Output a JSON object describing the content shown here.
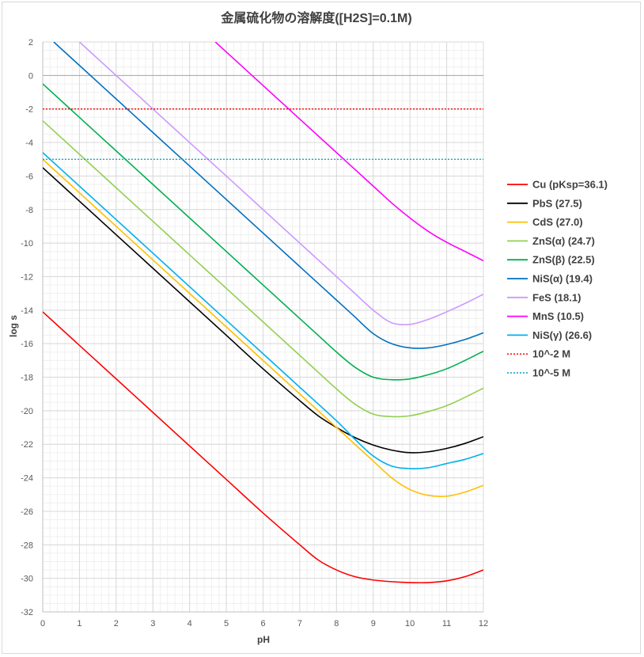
{
  "chart_data": {
    "type": "line",
    "title": "金属硫化物の溶解度([H2S]=0.1M)",
    "xlabel": "pH",
    "ylabel": "log s",
    "xlim": [
      0,
      12
    ],
    "ylim": [
      -32,
      2
    ],
    "x_ticks": [
      0,
      1,
      2,
      3,
      4,
      5,
      6,
      7,
      8,
      9,
      10,
      11,
      12
    ],
    "y_ticks": [
      2,
      0,
      -2,
      -4,
      -6,
      -8,
      -10,
      -12,
      -14,
      -16,
      -18,
      -20,
      -22,
      -24,
      -26,
      -28,
      -30,
      -32
    ],
    "x_minor_step": 0.2,
    "y_minor_step": 0.5,
    "legend_position": "right",
    "series": [
      {
        "name": "Cu (pKsp=36.1)",
        "color": "#ff0000",
        "style": "solid",
        "x": [
          0,
          1,
          2,
          3,
          4,
          5,
          6,
          7,
          7.5,
          8,
          8.5,
          9,
          9.5,
          10,
          10.5,
          11,
          11.5,
          12
        ],
        "y": [
          -14.1,
          -16.1,
          -18.1,
          -20.1,
          -22.1,
          -24.1,
          -26.1,
          -28.0,
          -28.9,
          -29.5,
          -29.9,
          -30.1,
          -30.2,
          -30.25,
          -30.25,
          -30.15,
          -29.9,
          -29.5
        ]
      },
      {
        "name": "PbS (27.5)",
        "color": "#000000",
        "style": "solid",
        "x": [
          0,
          1,
          2,
          3,
          4,
          5,
          6,
          7,
          7.5,
          8,
          8.5,
          9,
          9.5,
          10,
          10.5,
          11,
          11.5,
          12
        ],
        "y": [
          -5.5,
          -7.5,
          -9.5,
          -11.5,
          -13.5,
          -15.5,
          -17.5,
          -19.4,
          -20.3,
          -21.0,
          -21.6,
          -22.05,
          -22.35,
          -22.5,
          -22.45,
          -22.25,
          -21.95,
          -21.55
        ]
      },
      {
        "name": "CdS (27.0)",
        "color": "#ffc000",
        "style": "solid",
        "x": [
          0,
          1,
          2,
          3,
          4,
          5,
          6,
          7,
          8,
          8.5,
          9,
          9.5,
          10,
          10.5,
          11,
          11.5,
          12
        ],
        "y": [
          -5.0,
          -7.0,
          -9.0,
          -11.0,
          -13.0,
          -15.0,
          -17.0,
          -19.0,
          -21.0,
          -22.0,
          -23.0,
          -24.0,
          -24.7,
          -25.05,
          -25.1,
          -24.85,
          -24.45
        ]
      },
      {
        "name": "ZnS(α) (24.7)",
        "color": "#92d050",
        "style": "solid",
        "x": [
          0,
          1,
          2,
          3,
          4,
          5,
          6,
          7,
          7.5,
          8,
          8.5,
          9,
          9.5,
          10,
          10.5,
          11,
          11.5,
          12
        ],
        "y": [
          -2.7,
          -4.7,
          -6.7,
          -8.7,
          -10.7,
          -12.7,
          -14.7,
          -16.7,
          -17.7,
          -18.7,
          -19.6,
          -20.2,
          -20.35,
          -20.3,
          -20.05,
          -19.7,
          -19.2,
          -18.65
        ]
      },
      {
        "name": "ZnS(β) (22.5)",
        "color": "#00b050",
        "style": "solid",
        "x": [
          0,
          1,
          2,
          3,
          4,
          5,
          6,
          7,
          7.5,
          8,
          8.5,
          9,
          9.5,
          10,
          10.5,
          11,
          11.5,
          12
        ],
        "y": [
          -0.5,
          -2.5,
          -4.5,
          -6.5,
          -8.5,
          -10.5,
          -12.5,
          -14.5,
          -15.5,
          -16.5,
          -17.4,
          -18.0,
          -18.15,
          -18.1,
          -17.85,
          -17.5,
          -17.0,
          -16.45
        ]
      },
      {
        "name": "NiS(α) (19.4)",
        "color": "#0070c0",
        "style": "solid",
        "x": [
          0.3,
          1,
          2,
          3,
          4,
          5,
          6,
          7,
          7.5,
          8,
          8.5,
          9,
          9.5,
          10,
          10.5,
          11,
          11.5,
          12
        ],
        "y": [
          2.0,
          0.6,
          -1.4,
          -3.4,
          -5.4,
          -7.4,
          -9.4,
          -11.4,
          -12.4,
          -13.4,
          -14.4,
          -15.4,
          -16.0,
          -16.25,
          -16.25,
          -16.05,
          -15.75,
          -15.35
        ]
      },
      {
        "name": "FeS (18.1)",
        "color": "#cc99ff",
        "style": "solid",
        "x": [
          1,
          2,
          3,
          4,
          5,
          6,
          7,
          7.5,
          8,
          8.5,
          9,
          9.5,
          10,
          10.5,
          11,
          11.5,
          12
        ],
        "y": [
          2.0,
          0.0,
          -2.0,
          -4.0,
          -6.0,
          -8.0,
          -10.0,
          -11.0,
          -12.0,
          -13.0,
          -14.0,
          -14.75,
          -14.85,
          -14.55,
          -14.1,
          -13.6,
          -13.05
        ]
      },
      {
        "name": "MnS (10.5)",
        "color": "#ff00ff",
        "style": "solid",
        "x": [
          4.7,
          5,
          6,
          7,
          8,
          9,
          9.5,
          10,
          10.5,
          11,
          11.5,
          12
        ],
        "y": [
          2.0,
          1.4,
          -0.6,
          -2.6,
          -4.6,
          -6.6,
          -7.6,
          -8.5,
          -9.3,
          -9.95,
          -10.5,
          -11.05
        ]
      },
      {
        "name": "NiS(γ) (26.6)",
        "color": "#00b0f0",
        "style": "solid",
        "x": [
          0,
          1,
          2,
          3,
          4,
          5,
          6,
          7,
          8,
          8.5,
          9,
          9.5,
          10,
          10.5,
          11,
          11.5,
          12
        ],
        "y": [
          -4.6,
          -6.6,
          -8.6,
          -10.6,
          -12.6,
          -14.6,
          -16.6,
          -18.6,
          -20.6,
          -21.7,
          -22.7,
          -23.3,
          -23.45,
          -23.4,
          -23.15,
          -22.9,
          -22.55
        ]
      },
      {
        "name": "10^-2 M",
        "color": "#ff0000",
        "style": "dotted",
        "x": [
          0,
          12
        ],
        "y": [
          -2,
          -2
        ]
      },
      {
        "name": "10^-5 M",
        "color": "#00a0c0",
        "style": "dotted",
        "x": [
          0,
          12
        ],
        "y": [
          -5,
          -5
        ]
      }
    ]
  }
}
